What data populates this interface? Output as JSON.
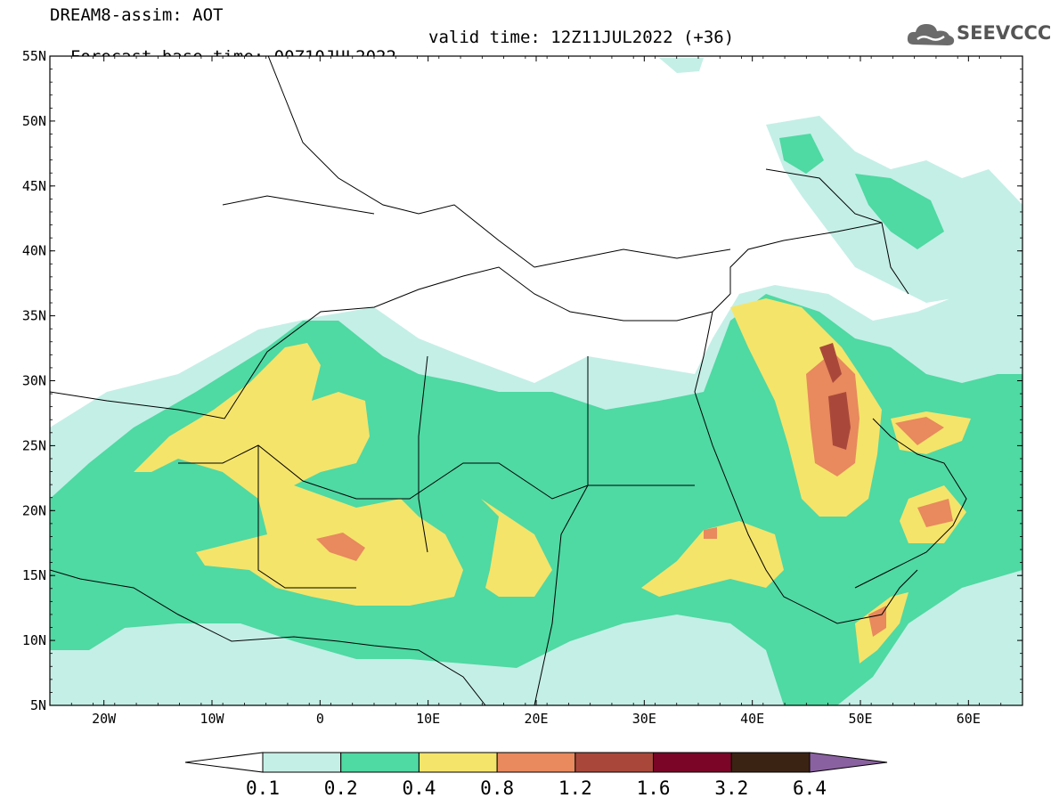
{
  "header": {
    "line1": "DREAM8-assim: AOT",
    "base_time": "Forecast base time: 00Z10JUL2022",
    "valid_time": "valid time: 12Z11JUL2022 (+36)"
  },
  "logo": {
    "text": "SEEVCCC",
    "icon": "cloud-icon"
  },
  "map": {
    "lat_labels": [
      "55N",
      "50N",
      "45N",
      "40N",
      "35N",
      "30N",
      "25N",
      "20N",
      "15N",
      "10N",
      "5N"
    ],
    "lon_labels": [
      "20W",
      "10W",
      "0",
      "10E",
      "20E",
      "30E",
      "40E",
      "50E",
      "60E"
    ],
    "lat_range": [
      5,
      55
    ],
    "lon_range": [
      -25,
      65
    ]
  },
  "colorbar": {
    "labels": [
      "0.1",
      "0.2",
      "0.4",
      "0.8",
      "1.2",
      "1.6",
      "3.2",
      "6.4"
    ],
    "colors": [
      "#ffffff",
      "#c4efe6",
      "#4fd9a3",
      "#f5e46a",
      "#e8895e",
      "#a9483a",
      "#7a0527",
      "#3b2313",
      "#8a61a0"
    ]
  }
}
